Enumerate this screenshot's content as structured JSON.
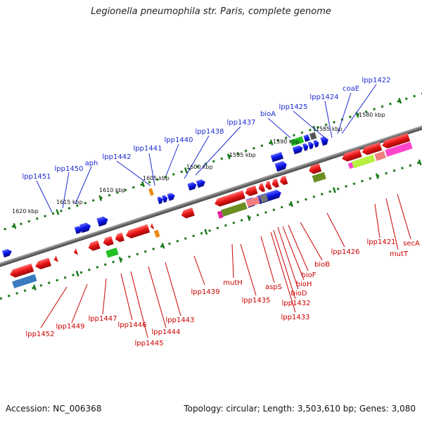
{
  "title": "Legionella pneumophila str. Paris, complete genome",
  "footer": {
    "accession": "Accession: NC_006368",
    "summary": "Topology: circular; Length: 3,503,610 bp; Genes: 3,080"
  },
  "ruler_labels": [
    "1620 kbp",
    "1615 kbp",
    "1610 kbp",
    "1605 kbp",
    "1600 kbp",
    "1595 kbp",
    "1590 kbp",
    "1585 kbp",
    "1580 kbp"
  ],
  "top_gene_labels": [
    "lpp1451",
    "lpp1450",
    "aph",
    "lpp1442",
    "lpp1441",
    "lpp1440",
    "lpp1438",
    "lpp1437",
    "bioA",
    "lpp1425",
    "lpp1424",
    "coaE",
    "lpp1422"
  ],
  "bottom_gene_labels": [
    "lpp1452",
    "lpp1449",
    "lpp1447",
    "lpp1446",
    "lpp1445",
    "lpp1444",
    "lpp1443",
    "lpp1439",
    "mutH",
    "lpp1435",
    "aspS",
    "lpp1433",
    "lpp1432",
    "bioD",
    "bioH",
    "bioF",
    "bioB",
    "lpp1426",
    "lpp1421",
    "mutT",
    "secA"
  ],
  "colors": {
    "forward_strand": "#0a14e6",
    "reverse_strand": "#e61414",
    "top_label": "#1e2ad0",
    "bottom_label": "#cc0000",
    "ruler_tick": "#1a7a1a",
    "backbone": "#7a7a7a"
  }
}
